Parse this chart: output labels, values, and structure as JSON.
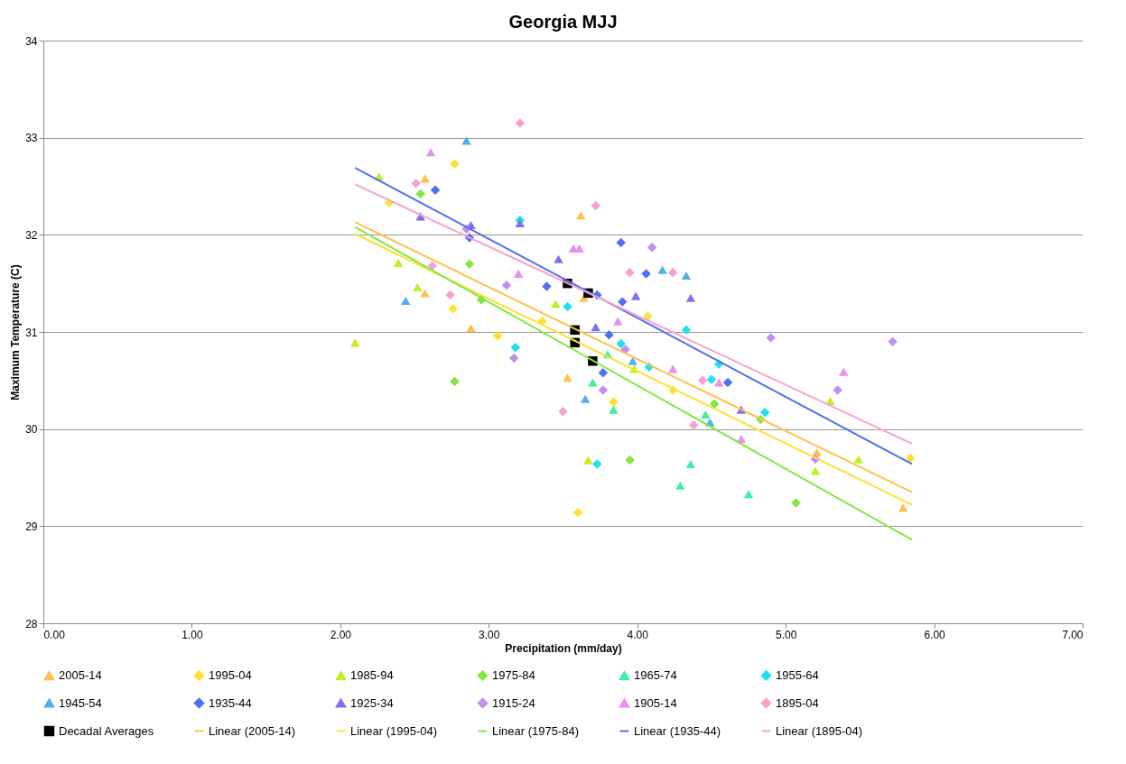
{
  "chart_data": {
    "type": "scatter",
    "title": "Georgia MJJ",
    "xlabel": "Precipitation (mm/day)",
    "ylabel": "Maximum Temperature (C)",
    "xlim": [
      0,
      7
    ],
    "ylim": [
      28,
      34
    ],
    "xticks": [
      {
        "value": 0,
        "label": "0.00"
      },
      {
        "value": 1,
        "label": "1.00"
      },
      {
        "value": 2,
        "label": "2.00"
      },
      {
        "value": 3,
        "label": "3.00"
      },
      {
        "value": 4,
        "label": "4.00"
      },
      {
        "value": 5,
        "label": "5.00"
      },
      {
        "value": 6,
        "label": "6.00"
      },
      {
        "value": 7,
        "label": "7.00"
      }
    ],
    "yticks": [
      28,
      29,
      30,
      31,
      32,
      33,
      34
    ],
    "grid": "y",
    "legend": "bottom",
    "series": [
      {
        "name": "2005-14",
        "marker": "triangle",
        "color": "#ffc04d",
        "x": [
          2.57,
          3.62,
          2.57,
          2.88,
          3.53,
          5.79,
          5.21,
          3.64
        ],
        "values": [
          32.58,
          32.2,
          31.4,
          31.04,
          30.53,
          29.19,
          29.76,
          31.35
        ]
      },
      {
        "name": "1995-04",
        "marker": "diamond",
        "color": "#ffe033",
        "x": [
          2.77,
          2.33,
          2.76,
          3.06,
          3.36,
          3.6,
          4.24,
          4.07,
          5.84,
          3.84
        ],
        "values": [
          32.73,
          32.33,
          31.24,
          30.96,
          31.11,
          29.14,
          30.4,
          31.16,
          29.7,
          30.28
        ]
      },
      {
        "name": "1985-94",
        "marker": "triangle",
        "color": "#c0f020",
        "x": [
          2.26,
          2.39,
          2.52,
          2.1,
          3.45,
          3.67,
          3.98,
          5.2,
          5.3,
          5.49
        ],
        "values": [
          32.6,
          31.71,
          31.46,
          30.89,
          31.29,
          29.68,
          30.62,
          29.57,
          30.29,
          29.69
        ]
      },
      {
        "name": "1975-84",
        "marker": "diamond",
        "color": "#80e840",
        "x": [
          2.54,
          2.87,
          2.95,
          2.77,
          3.95,
          5.07,
          4.52,
          4.83
        ],
        "values": [
          32.42,
          31.7,
          31.33,
          30.49,
          29.68,
          29.24,
          30.26,
          30.1
        ]
      },
      {
        "name": "1965-74",
        "marker": "triangle",
        "color": "#40f0a0",
        "x": [
          3.84,
          4.36,
          4.29,
          4.75,
          3.8,
          3.7,
          4.46
        ],
        "values": [
          30.2,
          29.64,
          29.42,
          29.33,
          30.77,
          30.48,
          30.15
        ]
      },
      {
        "name": "1955-64",
        "marker": "diamond",
        "color": "#20e0f0",
        "x": [
          3.21,
          3.53,
          3.18,
          3.73,
          4.33,
          4.08,
          4.55,
          4.86,
          3.89,
          4.5
        ],
        "values": [
          32.15,
          31.26,
          30.84,
          29.64,
          31.02,
          30.64,
          30.67,
          30.17,
          30.88,
          30.51
        ]
      },
      {
        "name": "1945-54",
        "marker": "triangle",
        "color": "#50b0f0",
        "x": [
          2.85,
          2.44,
          3.65,
          4.17,
          4.33,
          3.97,
          4.49
        ],
        "values": [
          32.97,
          31.32,
          30.31,
          31.64,
          31.58,
          30.7,
          30.07
        ]
      },
      {
        "name": "1935-44",
        "marker": "diamond",
        "color": "#5070f0",
        "x": [
          2.64,
          2.87,
          3.39,
          3.89,
          4.06,
          3.9,
          3.81,
          4.61,
          3.77,
          3.73
        ],
        "values": [
          32.46,
          31.97,
          31.47,
          31.92,
          31.6,
          31.31,
          30.97,
          30.48,
          30.58,
          31.38
        ]
      },
      {
        "name": "1925-34",
        "marker": "triangle",
        "color": "#8070f0",
        "x": [
          2.54,
          2.88,
          3.21,
          3.47,
          3.72,
          3.99,
          4.36,
          4.7
        ],
        "values": [
          32.19,
          32.1,
          32.12,
          31.75,
          31.05,
          31.37,
          31.35,
          30.2
        ]
      },
      {
        "name": "1915-24",
        "marker": "diamond",
        "color": "#c090f0",
        "x": [
          2.85,
          3.12,
          3.17,
          4.1,
          3.92,
          3.77,
          4.9,
          5.72,
          5.35,
          5.2
        ],
        "values": [
          32.06,
          31.48,
          30.73,
          31.87,
          30.82,
          30.4,
          30.94,
          30.9,
          30.4,
          29.69
        ]
      },
      {
        "name": "1905-14",
        "marker": "triangle",
        "color": "#e890f0",
        "x": [
          2.61,
          3.2,
          3.57,
          3.61,
          3.87,
          4.24,
          4.55,
          4.7,
          5.39
        ],
        "values": [
          32.85,
          31.6,
          31.86,
          31.86,
          31.11,
          30.62,
          30.48,
          29.9,
          30.59
        ]
      },
      {
        "name": "1895-04",
        "marker": "diamond",
        "color": "#f8a0d0",
        "x": [
          3.21,
          2.51,
          2.62,
          2.74,
          3.72,
          3.95,
          4.24,
          3.5,
          4.38,
          4.44
        ],
        "values": [
          33.15,
          32.53,
          31.68,
          31.38,
          32.3,
          31.61,
          31.61,
          30.18,
          30.04,
          30.5
        ]
      },
      {
        "name": "Decadal Averages",
        "marker": "square",
        "color": "#000000",
        "x": [
          3.53,
          3.67,
          3.58,
          3.58,
          3.7
        ],
        "values": [
          31.5,
          31.4,
          31.02,
          30.89,
          30.7
        ]
      },
      {
        "name": "Linear (2005-14)",
        "type": "line",
        "color": "#ffc04d",
        "x": [
          2.1,
          5.85
        ],
        "values": [
          32.13,
          29.35
        ]
      },
      {
        "name": "Linear (1995-04)",
        "type": "line",
        "color": "#ffe033",
        "x": [
          2.1,
          5.85
        ],
        "values": [
          32.01,
          29.22
        ]
      },
      {
        "name": "Linear (1975-84)",
        "type": "line",
        "color": "#80e840",
        "x": [
          2.1,
          5.85
        ],
        "values": [
          32.08,
          28.86
        ]
      },
      {
        "name": "Linear (1935-44)",
        "type": "line",
        "color": "#5070f0",
        "x": [
          2.1,
          5.85
        ],
        "values": [
          32.69,
          29.64
        ]
      },
      {
        "name": "Linear (1895-04)",
        "type": "line",
        "color": "#f8a0d0",
        "x": [
          2.1,
          5.85
        ],
        "values": [
          32.52,
          29.85
        ]
      }
    ]
  }
}
